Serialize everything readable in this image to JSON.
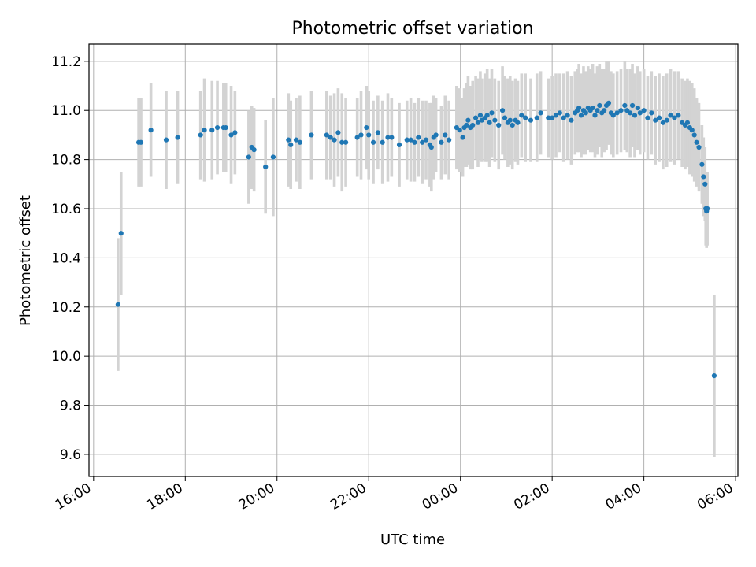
{
  "chart_data": {
    "type": "scatter",
    "title": "Photometric offset variation",
    "xlabel": "UTC time",
    "ylabel": "Photometric offset",
    "x_ticks": [
      "16:00",
      "18:00",
      "20:00",
      "22:00",
      "00:00",
      "02:00",
      "04:00",
      "06:00"
    ],
    "y_ticks": [
      "9.6",
      "9.8",
      "10.0",
      "10.2",
      "10.4",
      "10.6",
      "10.8",
      "11.0",
      "11.2"
    ],
    "xlim": [
      "15:54",
      "06:03"
    ],
    "ylim": [
      9.51,
      11.27
    ],
    "grid": true,
    "colors": {
      "point": "#1f77b4",
      "errorbar": "#d3d3d3",
      "grid": "#b0b0b0"
    },
    "series": [
      {
        "points": [
          [
            "16:32",
            10.21,
            0.27
          ],
          [
            "16:36",
            10.5,
            0.25
          ],
          [
            "16:59",
            10.87,
            0.18
          ],
          [
            "17:02",
            10.87,
            0.18
          ],
          [
            "17:15",
            10.92,
            0.19
          ],
          [
            "17:35",
            10.88,
            0.2
          ],
          [
            "17:50",
            10.89,
            0.19
          ],
          [
            "18:20",
            10.9,
            0.18
          ],
          [
            "18:25",
            10.92,
            0.21
          ],
          [
            "18:35",
            10.92,
            0.2
          ],
          [
            "18:42",
            10.93,
            0.19
          ],
          [
            "18:50",
            10.93,
            0.18
          ],
          [
            "18:53",
            10.93,
            0.18
          ],
          [
            "19:00",
            10.9,
            0.2
          ],
          [
            "19:05",
            10.91,
            0.17
          ],
          [
            "19:23",
            10.81,
            0.19
          ],
          [
            "19:27",
            10.85,
            0.17
          ],
          [
            "19:30",
            10.84,
            0.17
          ],
          [
            "19:45",
            10.77,
            0.19
          ],
          [
            "19:55",
            10.81,
            0.24
          ],
          [
            "20:15",
            10.88,
            0.19
          ],
          [
            "20:18",
            10.86,
            0.18
          ],
          [
            "20:25",
            10.88,
            0.17
          ],
          [
            "20:30",
            10.87,
            0.19
          ],
          [
            "20:45",
            10.9,
            0.18
          ],
          [
            "21:05",
            10.9,
            0.18
          ],
          [
            "21:10",
            10.89,
            0.17
          ],
          [
            "21:15",
            10.88,
            0.19
          ],
          [
            "21:20",
            10.91,
            0.18
          ],
          [
            "21:25",
            10.87,
            0.2
          ],
          [
            "21:30",
            10.87,
            0.18
          ],
          [
            "21:45",
            10.89,
            0.16
          ],
          [
            "21:50",
            10.9,
            0.18
          ],
          [
            "21:57",
            10.93,
            0.17
          ],
          [
            "22:00",
            10.9,
            0.18
          ],
          [
            "22:06",
            10.87,
            0.17
          ],
          [
            "22:12",
            10.91,
            0.15
          ],
          [
            "22:18",
            10.87,
            0.17
          ],
          [
            "22:25",
            10.89,
            0.18
          ],
          [
            "22:30",
            10.89,
            0.16
          ],
          [
            "22:40",
            10.86,
            0.17
          ],
          [
            "22:50",
            10.88,
            0.16
          ],
          [
            "22:55",
            10.88,
            0.17
          ],
          [
            "23:00",
            10.87,
            0.16
          ],
          [
            "23:05",
            10.89,
            0.16
          ],
          [
            "23:10",
            10.87,
            0.17
          ],
          [
            "23:15",
            10.88,
            0.16
          ],
          [
            "23:20",
            10.86,
            0.17
          ],
          [
            "23:22",
            10.85,
            0.18
          ],
          [
            "23:25",
            10.89,
            0.17
          ],
          [
            "23:28",
            10.9,
            0.15
          ],
          [
            "23:35",
            10.87,
            0.15
          ],
          [
            "23:40",
            10.9,
            0.16
          ],
          [
            "23:45",
            10.88,
            0.16
          ],
          [
            "23:55",
            10.93,
            0.17
          ],
          [
            "23:59",
            10.92,
            0.17
          ],
          [
            "00:03",
            10.89,
            0.16
          ],
          [
            "00:05",
            10.93,
            0.16
          ],
          [
            "00:08",
            10.94,
            0.17
          ],
          [
            "00:10",
            10.96,
            0.18
          ],
          [
            "00:13",
            10.93,
            0.17
          ],
          [
            "00:16",
            10.94,
            0.18
          ],
          [
            "00:20",
            10.97,
            0.17
          ],
          [
            "00:23",
            10.95,
            0.18
          ],
          [
            "00:26",
            10.98,
            0.18
          ],
          [
            "00:28",
            10.96,
            0.17
          ],
          [
            "00:32",
            10.97,
            0.18
          ],
          [
            "00:35",
            10.98,
            0.19
          ],
          [
            "00:38",
            10.95,
            0.18
          ],
          [
            "00:41",
            10.99,
            0.18
          ],
          [
            "00:45",
            10.96,
            0.17
          ],
          [
            "00:50",
            10.94,
            0.18
          ],
          [
            "00:55",
            11.0,
            0.18
          ],
          [
            "00:58",
            10.97,
            0.17
          ],
          [
            "01:02",
            10.95,
            0.18
          ],
          [
            "01:05",
            10.96,
            0.18
          ],
          [
            "01:08",
            10.94,
            0.18
          ],
          [
            "01:12",
            10.96,
            0.17
          ],
          [
            "01:15",
            10.95,
            0.17
          ],
          [
            "01:20",
            10.98,
            0.17
          ],
          [
            "01:25",
            10.97,
            0.18
          ],
          [
            "01:32",
            10.96,
            0.17
          ],
          [
            "01:40",
            10.97,
            0.18
          ],
          [
            "01:45",
            10.99,
            0.17
          ],
          [
            "01:55",
            10.97,
            0.16
          ],
          [
            "02:00",
            10.97,
            0.17
          ],
          [
            "02:05",
            10.98,
            0.17
          ],
          [
            "02:10",
            10.99,
            0.16
          ],
          [
            "02:15",
            10.97,
            0.18
          ],
          [
            "02:20",
            10.98,
            0.18
          ],
          [
            "02:25",
            10.96,
            0.18
          ],
          [
            "02:30",
            10.99,
            0.17
          ],
          [
            "02:33",
            11.0,
            0.17
          ],
          [
            "02:35",
            11.01,
            0.18
          ],
          [
            "02:38",
            10.98,
            0.17
          ],
          [
            "02:41",
            11.0,
            0.18
          ],
          [
            "02:44",
            10.99,
            0.17
          ],
          [
            "02:47",
            11.01,
            0.17
          ],
          [
            "02:50",
            11.0,
            0.17
          ],
          [
            "02:53",
            11.01,
            0.18
          ],
          [
            "02:56",
            10.98,
            0.17
          ],
          [
            "02:59",
            11.0,
            0.18
          ],
          [
            "03:02",
            11.02,
            0.17
          ],
          [
            "03:05",
            10.99,
            0.18
          ],
          [
            "03:08",
            11.0,
            0.17
          ],
          [
            "03:11",
            11.02,
            0.18
          ],
          [
            "03:14",
            11.03,
            0.17
          ],
          [
            "03:17",
            10.99,
            0.17
          ],
          [
            "03:20",
            10.98,
            0.17
          ],
          [
            "03:25",
            10.99,
            0.17
          ],
          [
            "03:30",
            11.0,
            0.17
          ],
          [
            "03:35",
            11.02,
            0.18
          ],
          [
            "03:38",
            11.0,
            0.17
          ],
          [
            "03:42",
            10.99,
            0.18
          ],
          [
            "03:45",
            11.02,
            0.17
          ],
          [
            "03:48",
            10.98,
            0.17
          ],
          [
            "03:52",
            11.01,
            0.17
          ],
          [
            "03:55",
            10.99,
            0.17
          ],
          [
            "04:00",
            11.0,
            0.17
          ],
          [
            "04:05",
            10.97,
            0.17
          ],
          [
            "04:10",
            10.99,
            0.17
          ],
          [
            "04:15",
            10.96,
            0.18
          ],
          [
            "04:20",
            10.97,
            0.18
          ],
          [
            "04:25",
            10.95,
            0.19
          ],
          [
            "04:30",
            10.96,
            0.19
          ],
          [
            "04:35",
            10.98,
            0.19
          ],
          [
            "04:40",
            10.97,
            0.19
          ],
          [
            "04:45",
            10.98,
            0.18
          ],
          [
            "04:50",
            10.95,
            0.18
          ],
          [
            "04:54",
            10.94,
            0.18
          ],
          [
            "04:57",
            10.95,
            0.18
          ],
          [
            "05:00",
            10.93,
            0.19
          ],
          [
            "05:03",
            10.92,
            0.19
          ],
          [
            "05:06",
            10.9,
            0.19
          ],
          [
            "05:09",
            10.87,
            0.18
          ],
          [
            "05:12",
            10.85,
            0.18
          ],
          [
            "05:16",
            10.78,
            0.16
          ],
          [
            "05:18",
            10.73,
            0.16
          ],
          [
            "05:20",
            10.7,
            0.15
          ],
          [
            "05:21",
            10.6,
            0.15
          ],
          [
            "05:22",
            10.59,
            0.15
          ],
          [
            "05:23",
            10.6,
            0.15
          ],
          [
            "05:32",
            9.92,
            0.33
          ]
        ]
      }
    ]
  }
}
